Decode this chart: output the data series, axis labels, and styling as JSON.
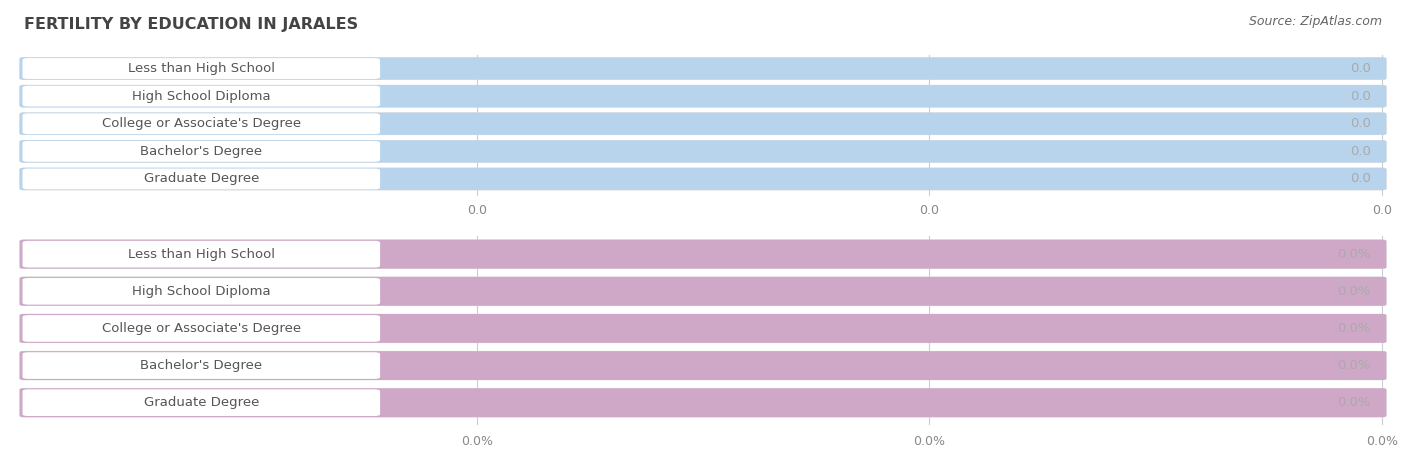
{
  "title": "FERTILITY BY EDUCATION IN JARALES",
  "source_text": "Source: ZipAtlas.com",
  "categories": [
    "Less than High School",
    "High School Diploma",
    "College or Associate's Degree",
    "Bachelor's Degree",
    "Graduate Degree"
  ],
  "top_values": [
    0.0,
    0.0,
    0.0,
    0.0,
    0.0
  ],
  "bottom_values": [
    0.0,
    0.0,
    0.0,
    0.0,
    0.0
  ],
  "top_color": "#b8d4ed",
  "bottom_color": "#cfa8c8",
  "bar_bg_color": "#efefef",
  "title_color": "#444444",
  "label_color": "#555555",
  "value_color_top": "#7aa8cc",
  "value_color_bottom": "#aa88bb",
  "tick_color": "#888888",
  "source_color": "#666666",
  "white_pill_color": "#ffffff",
  "top_tick_labels": [
    "0.0",
    "0.0",
    "0.0"
  ],
  "bottom_tick_labels": [
    "0.0%",
    "0.0%",
    "0.0%"
  ],
  "title_fontsize": 11.5,
  "label_fontsize": 9.5,
  "value_fontsize": 9.5,
  "tick_fontsize": 9,
  "source_fontsize": 9,
  "bg_color": "#ffffff"
}
